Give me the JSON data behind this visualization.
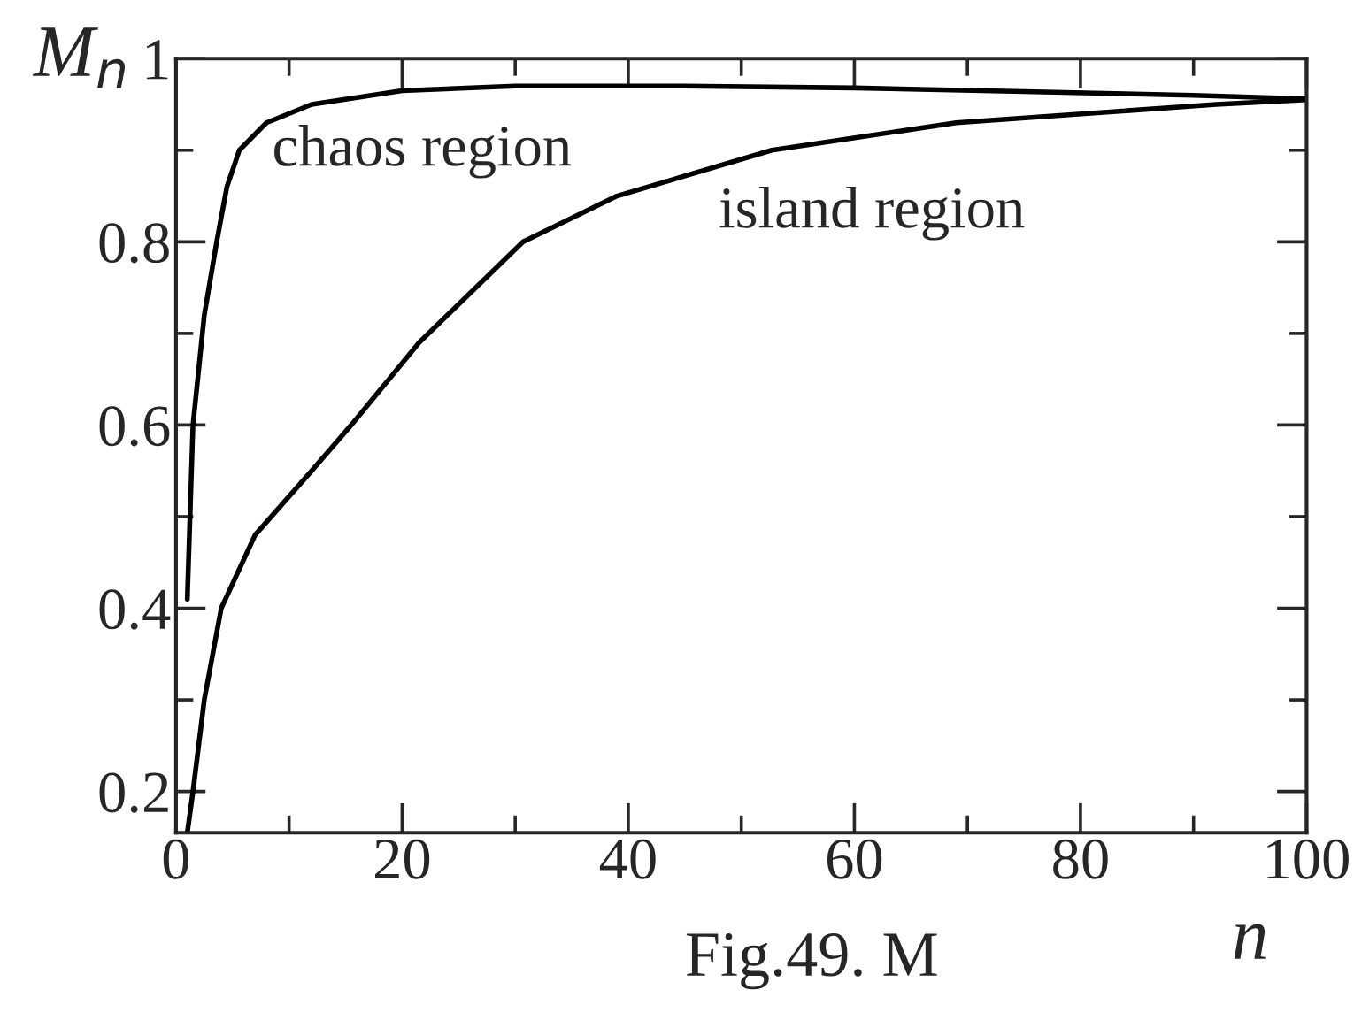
{
  "chart_data": {
    "type": "line",
    "xlabel": "n",
    "ylabel": "M$_{n}$",
    "xlim": [
      0,
      100
    ],
    "ylim": [
      0.155,
      1
    ],
    "xticks": [
      0,
      20,
      40,
      60,
      80,
      100
    ],
    "yticks": [
      {
        "value": 0.2,
        "label": "0.2"
      },
      {
        "value": 0.4,
        "label": "0.4"
      },
      {
        "value": 0.6,
        "label": "0.6"
      },
      {
        "value": 0.8,
        "label": "0.8"
      },
      {
        "value": 1,
        "label": "1"
      }
    ],
    "grid": false,
    "legend": false,
    "marker": "none",
    "line_style": "solid",
    "series": [
      {
        "color": "#000000",
        "x": [
          1,
          1.5,
          2.5,
          3.6,
          4.5,
          5.6,
          8,
          12,
          20,
          30,
          45,
          60,
          75,
          90,
          100
        ],
        "values": [
          0.41,
          0.6,
          0.72,
          0.8,
          0.86,
          0.9,
          0.93,
          0.95,
          0.965,
          0.97,
          0.97,
          0.968,
          0.964,
          0.96,
          0.956
        ]
      },
      {
        "color": "#000000",
        "x": [
          1,
          1.5,
          2.5,
          4,
          7,
          12,
          15.5,
          21.5,
          30.7,
          39,
          52.7,
          69,
          92,
          100
        ],
        "values": [
          0.155,
          0.2,
          0.3,
          0.4,
          0.48,
          0.55,
          0.6,
          0.69,
          0.8,
          0.85,
          0.9,
          0.93,
          0.95,
          0.955
        ]
      }
    ],
    "annotations": [
      "chaos region",
      "island region",
      "Fig.49. M"
    ]
  }
}
